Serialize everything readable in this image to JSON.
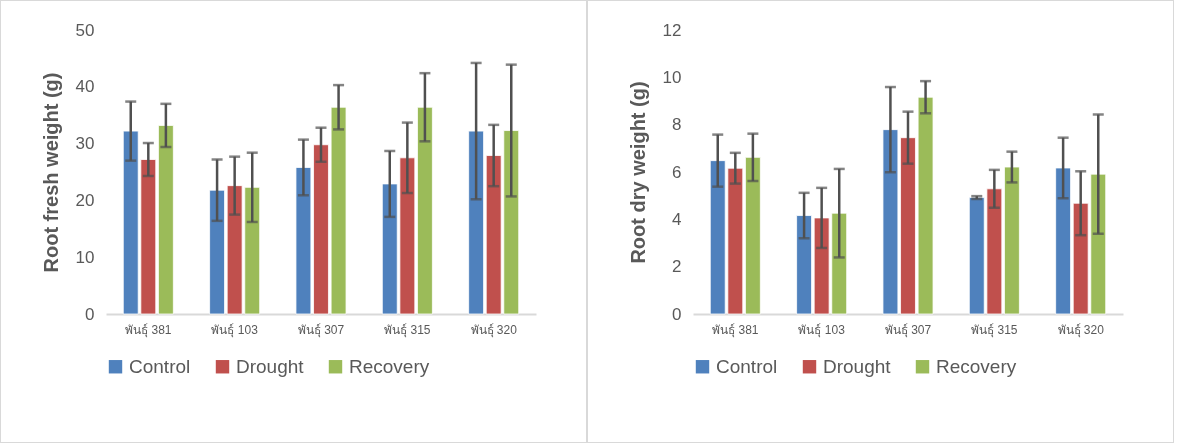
{
  "chart_data": [
    {
      "type": "bar",
      "ylabel": "Root fresh weight (g)",
      "categories": [
        "พันธุ์ 381",
        "พันธุ์ 103",
        "พันธุ์ 307",
        "พันธุ์ 315",
        "พันธุ์ 320"
      ],
      "ylim": [
        0,
        50
      ],
      "yticks": [
        0,
        10,
        20,
        30,
        40,
        50
      ],
      "grid": false,
      "legend": "bottom",
      "series": [
        {
          "name": "Control",
          "color": "#4f81bd",
          "values": [
            32.2,
            21.8,
            25.8,
            22.9,
            32.2
          ],
          "errors": [
            5.2,
            5.4,
            4.9,
            5.8,
            12
          ]
        },
        {
          "name": "Drought",
          "color": "#c0504d",
          "values": [
            27.2,
            22.6,
            29.8,
            27.5,
            27.9
          ],
          "errors": [
            2.9,
            5.1,
            3,
            6.2,
            5.4
          ]
        },
        {
          "name": "Recovery",
          "color": "#9bbb59",
          "values": [
            33.2,
            22.3,
            36.4,
            36.4,
            32.3
          ],
          "errors": [
            3.8,
            6.1,
            3.9,
            6,
            11.6
          ]
        }
      ]
    },
    {
      "type": "bar",
      "ylabel": "Root dry weight (g)",
      "categories": [
        "พันธุ์ 381",
        "พันธุ์ 103",
        "พันธุ์ 307",
        "พันธุ์ 315",
        "พันธุ์ 320"
      ],
      "ylim": [
        0,
        12
      ],
      "yticks": [
        0,
        2,
        4,
        6,
        8,
        10,
        12
      ],
      "grid": false,
      "legend": "bottom",
      "series": [
        {
          "name": "Control",
          "color": "#4f81bd",
          "values": [
            6.48,
            4.16,
            7.79,
            4.92,
            6.17
          ],
          "errors": [
            1.1,
            0.96,
            1.8,
            0.06,
            1.28
          ]
        },
        {
          "name": "Drought",
          "color": "#c0504d",
          "values": [
            6.16,
            4.06,
            7.45,
            5.29,
            4.68
          ],
          "errors": [
            0.65,
            1.27,
            1.1,
            0.8,
            1.35
          ]
        },
        {
          "name": "Recovery",
          "color": "#9bbb59",
          "values": [
            6.62,
            4.26,
            9.16,
            6.21,
            5.91
          ],
          "errors": [
            1,
            1.87,
            0.68,
            0.65,
            2.52
          ]
        }
      ]
    }
  ]
}
